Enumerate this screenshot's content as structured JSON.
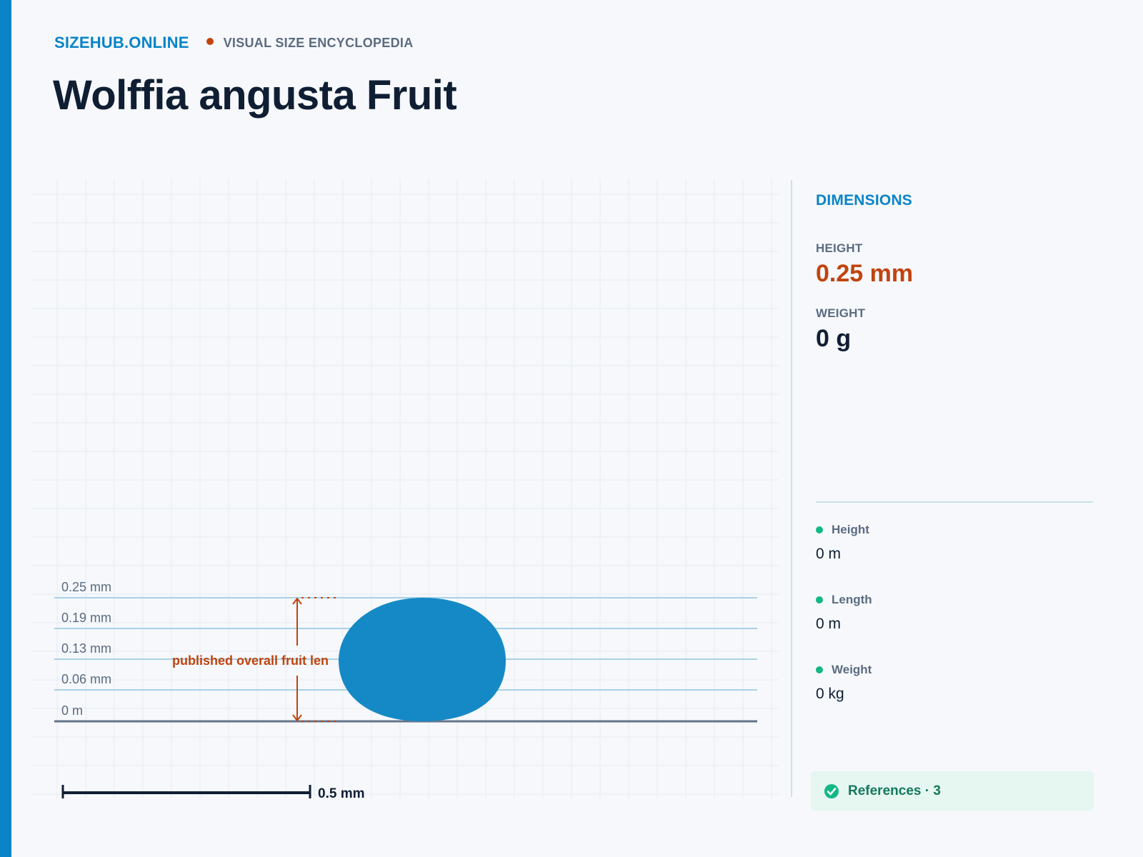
{
  "header": {
    "brand": "SIZEHUB.ONLINE",
    "tagline": "VISUAL SIZE ENCYCLOPEDIA",
    "title": "Wolffia angusta Fruit"
  },
  "diagram": {
    "tick_labels": [
      "0.25 mm",
      "0.19 mm",
      "0.13 mm",
      "0.06 mm",
      "0 m"
    ],
    "annotation": "published overall fruit len",
    "scale_bar_label": "0.5 mm",
    "object_fill": "#1589c6",
    "accent_color": "#c1440e"
  },
  "sidebar": {
    "title": "DIMENSIONS",
    "height_label": "HEIGHT",
    "height_value": "0.25 mm",
    "weight_label": "WEIGHT",
    "weight_value": "0 g",
    "metrics": [
      {
        "label": "Height",
        "value": "0 m"
      },
      {
        "label": "Length",
        "value": "0 m"
      },
      {
        "label": "Weight",
        "value": "0 kg"
      }
    ],
    "references_label": "References · 3",
    "references_icon": "check-circle-icon"
  }
}
